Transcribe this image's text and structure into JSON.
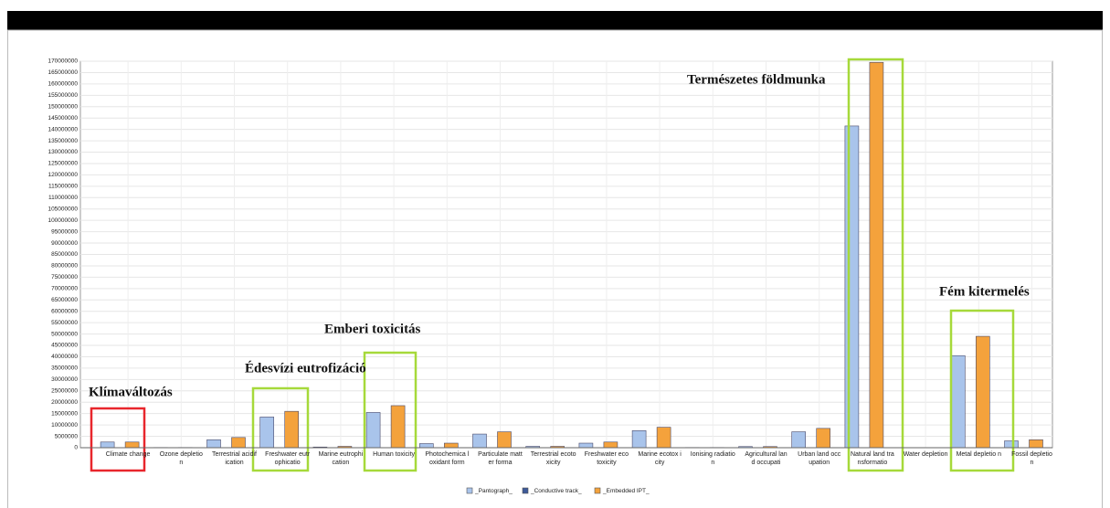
{
  "chart_data": {
    "type": "bar",
    "categories": [
      "Climate change",
      "Ozone depletion",
      "Terrestrial acidification",
      "Freshwater eutrophicatio",
      "Marine eutrophication",
      "Human toxicity",
      "Photochemica l oxidant form",
      "Particulate matter forma",
      "Terrestrial ecotoxicity",
      "Freshwater ecotoxicity",
      "Marine ecotox icity",
      "Ionising radiation",
      "Agricultural land occupati",
      "Urban land occupation",
      "Natural land transformatio",
      "Water depletion",
      "Metal depletio n",
      "Fossil depletio n"
    ],
    "series": [
      {
        "name": "_Pantograph_",
        "color": "#a9c4eb",
        "values": [
          2500000,
          100000,
          3500000,
          13500000,
          300000,
          15500000,
          1800000,
          6000000,
          600000,
          2000000,
          7500000,
          100000,
          500000,
          7000000,
          141500000,
          0,
          40500000,
          3000000
        ]
      },
      {
        "name": "_Conductive track_",
        "color": "#3d5a99",
        "values": [
          0,
          0,
          0,
          0,
          0,
          0,
          0,
          0,
          0,
          0,
          0,
          0,
          0,
          0,
          0,
          0,
          0,
          0
        ]
      },
      {
        "name": "_Embedded IPT_",
        "color": "#f4a23c",
        "values": [
          2500000,
          100000,
          4500000,
          16000000,
          600000,
          18500000,
          2000000,
          7000000,
          600000,
          2500000,
          9000000,
          100000,
          500000,
          8500000,
          169500000,
          0,
          49000000,
          3500000
        ]
      }
    ],
    "ylim": [
      0,
      170000000
    ],
    "yticks": [
      0,
      5000000,
      10000000,
      15000000,
      20000000,
      25000000,
      30000000,
      35000000,
      40000000,
      45000000,
      50000000,
      55000000,
      60000000,
      65000000,
      70000000,
      75000000,
      80000000,
      85000000,
      90000000,
      95000000,
      100000000,
      105000000,
      110000000,
      115000000,
      120000000,
      125000000,
      130000000,
      135000000,
      140000000,
      145000000,
      150000000,
      155000000,
      160000000,
      165000000,
      170000000
    ],
    "grid": true,
    "annotations": [
      "Klímaváltozás",
      "Édesvízi eutrofizáció",
      "Emberi toxicitás",
      "Természetes földmunka",
      "Fém kitermelés"
    ]
  }
}
